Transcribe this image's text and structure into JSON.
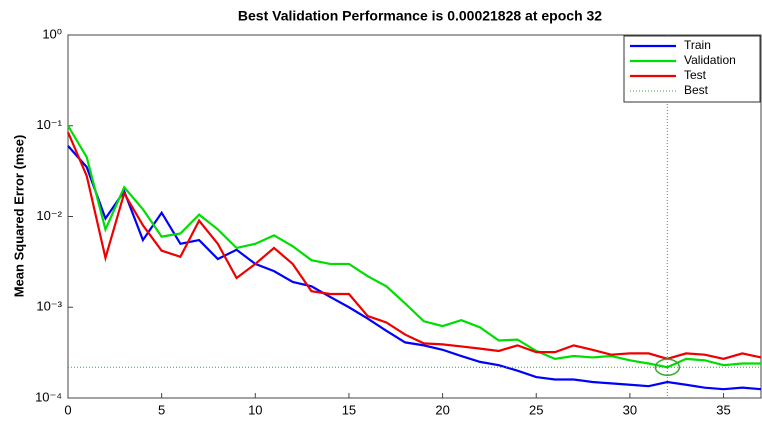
{
  "chart_data": {
    "type": "line",
    "title": "Best Validation Performance is 0.00021828 at epoch 32",
    "y_label": "Mean Squared Error  (mse)",
    "log_y": true,
    "x": [
      0,
      1,
      2,
      3,
      4,
      5,
      6,
      7,
      8,
      9,
      10,
      11,
      12,
      13,
      14,
      15,
      16,
      17,
      18,
      19,
      20,
      21,
      22,
      23,
      24,
      25,
      26,
      27,
      28,
      29,
      30,
      31,
      32,
      33,
      34,
      35,
      36,
      37
    ],
    "series": [
      {
        "name": "Train",
        "color": "#0000ff",
        "values": [
          0.06,
          0.035,
          0.0095,
          0.019,
          0.0055,
          0.011,
          0.005,
          0.0055,
          0.0034,
          0.0043,
          0.003,
          0.0025,
          0.0019,
          0.0017,
          0.0013,
          0.001,
          0.00075,
          0.00055,
          0.00041,
          0.00038,
          0.00034,
          0.00029,
          0.00025,
          0.00023,
          0.0002,
          0.00017,
          0.00016,
          0.00016,
          0.00015,
          0.000145,
          0.00014,
          0.000135,
          0.00015,
          0.00014,
          0.00013,
          0.000125,
          0.00013,
          0.000125
        ]
      },
      {
        "name": "Validation",
        "color": "#00dd00",
        "values": [
          0.1,
          0.045,
          0.0072,
          0.021,
          0.012,
          0.006,
          0.0065,
          0.0105,
          0.0072,
          0.0045,
          0.005,
          0.0062,
          0.0047,
          0.0033,
          0.003,
          0.003,
          0.0022,
          0.0017,
          0.0011,
          0.0007,
          0.00062,
          0.00072,
          0.0006,
          0.00043,
          0.00044,
          0.00033,
          0.00027,
          0.00029,
          0.00028,
          0.00029,
          0.00026,
          0.00024,
          0.00021828,
          0.00027,
          0.00026,
          0.00023,
          0.00024,
          0.00024
        ]
      },
      {
        "name": "Test",
        "color": "#ee0000",
        "values": [
          0.085,
          0.028,
          0.0035,
          0.018,
          0.008,
          0.0042,
          0.0036,
          0.009,
          0.005,
          0.0021,
          0.003,
          0.0045,
          0.003,
          0.0015,
          0.0014,
          0.0014,
          0.0008,
          0.00068,
          0.0005,
          0.0004,
          0.00039,
          0.00037,
          0.00035,
          0.00033,
          0.00038,
          0.00032,
          0.00032,
          0.00038,
          0.00034,
          0.0003,
          0.00031,
          0.00031,
          0.00027,
          0.00031,
          0.0003,
          0.00027,
          0.00031,
          0.00028
        ]
      }
    ],
    "best": {
      "name": "Best",
      "color": "#33aa33",
      "x": 32,
      "y": 0.00021828
    },
    "xlim": [
      0,
      37
    ],
    "xticks": [
      0,
      5,
      10,
      15,
      20,
      25,
      30,
      35
    ],
    "ylim": [
      0.0001,
      1
    ],
    "yticks": [
      {
        "value": 0.0001,
        "label": "10⁻⁴"
      },
      {
        "value": 0.001,
        "label": "10⁻³"
      },
      {
        "value": 0.01,
        "label": "10⁻²"
      },
      {
        "value": 0.1,
        "label": "10⁻¹"
      },
      {
        "value": 1,
        "label": "10⁰"
      }
    ],
    "legend": "top-right"
  }
}
